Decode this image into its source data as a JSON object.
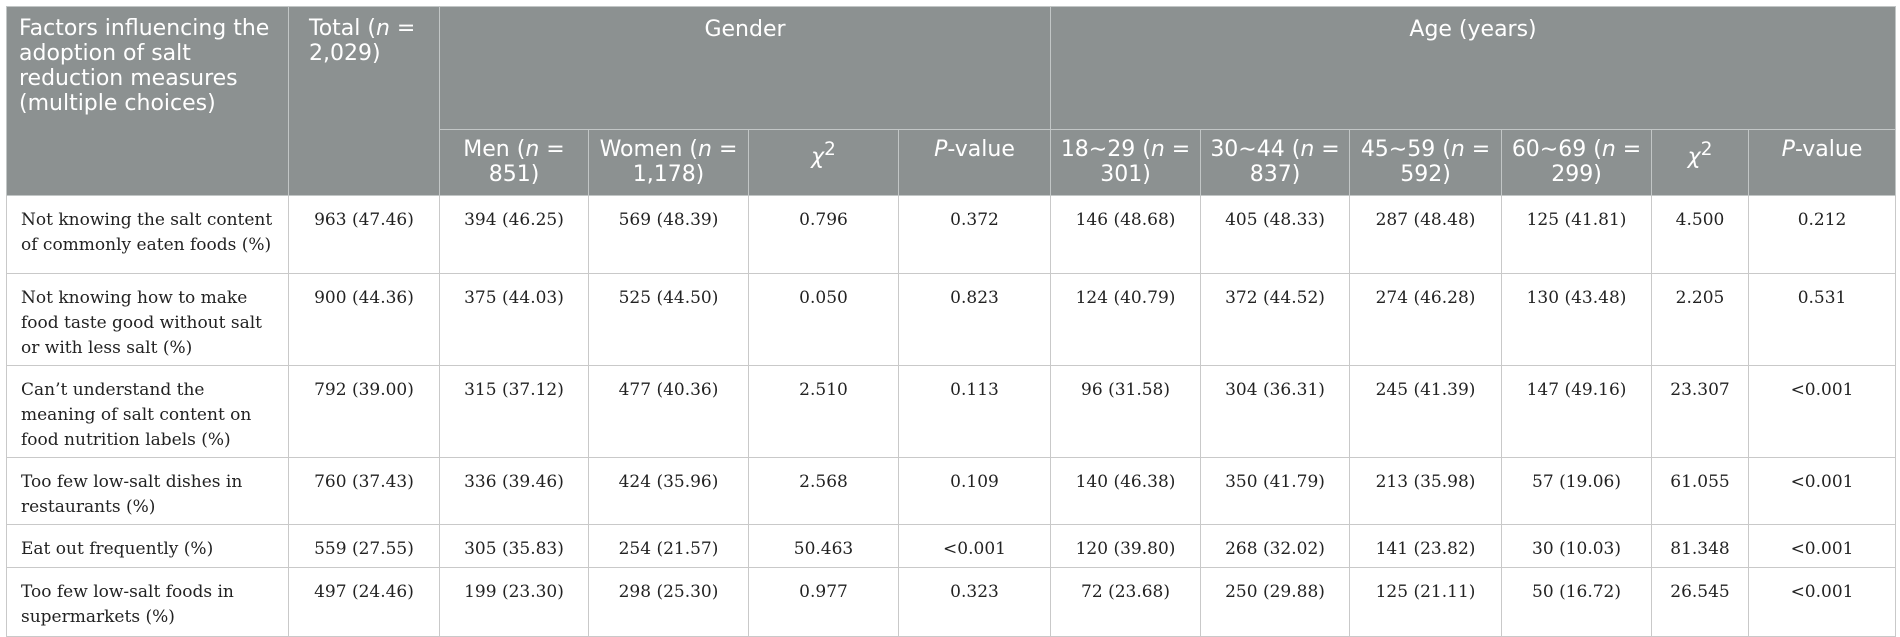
{
  "header": {
    "factors": "Factors influencing the adoption of salt reduction measures (multiple choices)",
    "total": {
      "prefix": "Total (",
      "n": "n",
      "suffix": " = 2,029)"
    },
    "gender": "Gender",
    "age": "Age (years)",
    "men": {
      "prefix": "Men (",
      "n": "n",
      "suffix": " = 851)"
    },
    "women": {
      "prefix": "Women (",
      "n": "n",
      "suffix": " = 1,178)"
    },
    "chi": "χ",
    "chi_sup": "2",
    "p_italic": "P",
    "p_rest": "-value",
    "age1": {
      "prefix": "18∼29 (",
      "n": "n",
      "suffix": " = 301)"
    },
    "age2": {
      "prefix": "30∼44 (",
      "n": "n",
      "suffix": " = 837)"
    },
    "age3": {
      "prefix": "45∼59 (",
      "n": "n",
      "suffix": " = 592)"
    },
    "age4": {
      "prefix": "60∼69 (",
      "n": "n",
      "suffix": " = 299)"
    }
  },
  "rows": [
    {
      "label": "Not knowing the salt content of commonly eaten foods (%)",
      "cells": [
        "963 (47.46)",
        "394 (46.25)",
        "569 (48.39)",
        "0.796",
        "0.372",
        "146 (48.68)",
        "405 (48.33)",
        "287 (48.48)",
        "125 (41.81)",
        "4.500",
        "0.212"
      ]
    },
    {
      "label": "Not knowing how to make food taste good without salt or with less salt (%)",
      "cells": [
        "900 (44.36)",
        "375 (44.03)",
        "525 (44.50)",
        "0.050",
        "0.823",
        "124 (40.79)",
        "372 (44.52)",
        "274 (46.28)",
        "130 (43.48)",
        "2.205",
        "0.531"
      ]
    },
    {
      "label": "Can’t understand the meaning of salt content on food nutrition labels (%)",
      "cells": [
        "792 (39.00)",
        "315 (37.12)",
        "477 (40.36)",
        "2.510",
        "0.113",
        "96 (31.58)",
        "304 (36.31)",
        "245 (41.39)",
        "147 (49.16)",
        "23.307",
        "<0.001"
      ]
    },
    {
      "label": "Too few low-salt dishes in restaurants (%)",
      "cells": [
        "760 (37.43)",
        "336 (39.46)",
        "424 (35.96)",
        "2.568",
        "0.109",
        "140 (46.38)",
        "350 (41.79)",
        "213 (35.98)",
        "57 (19.06)",
        "61.055",
        "<0.001"
      ]
    },
    {
      "label": "Eat out frequently (%)",
      "cells": [
        "559 (27.55)",
        "305 (35.83)",
        "254 (21.57)",
        "50.463",
        "<0.001",
        "120 (39.80)",
        "268 (32.02)",
        "141 (23.82)",
        "30 (10.03)",
        "81.348",
        "<0.001"
      ]
    },
    {
      "label": "Too few low-salt foods in supermarkets (%)",
      "cells": [
        "497 (24.46)",
        "199 (23.30)",
        "298 (25.30)",
        "0.977",
        "0.323",
        "72 (23.68)",
        "250 (29.88)",
        "125 (21.11)",
        "50 (16.72)",
        "26.545",
        "<0.001"
      ]
    }
  ]
}
